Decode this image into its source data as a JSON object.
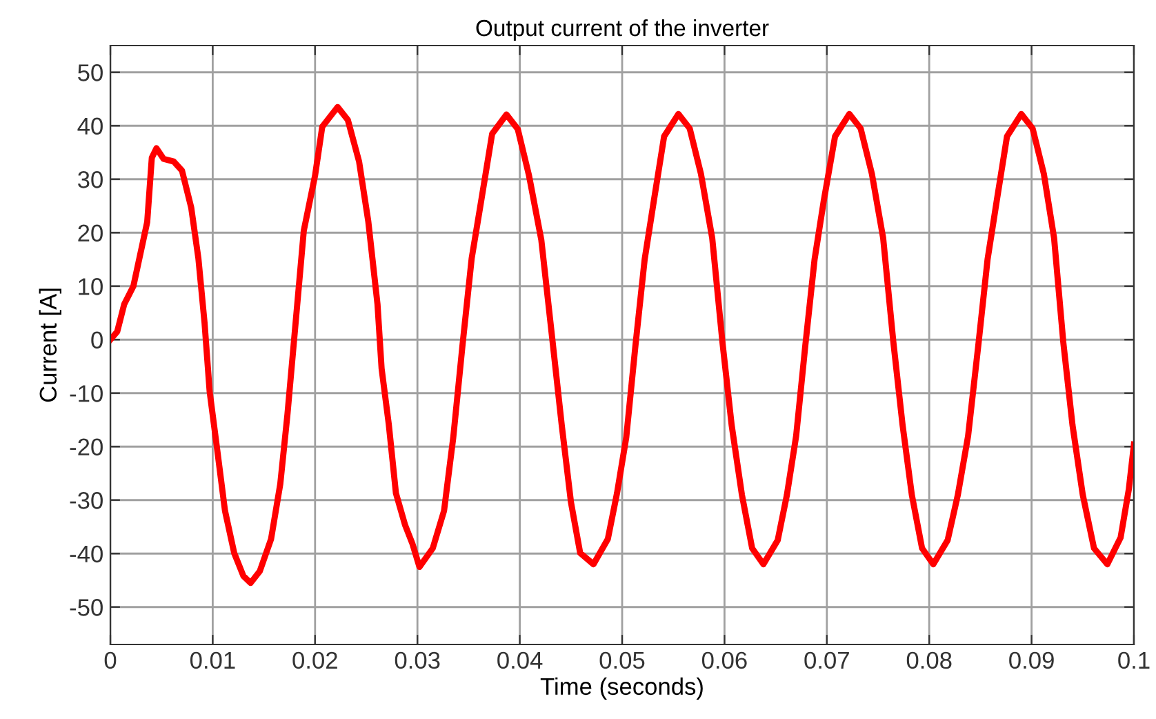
{
  "chart_data": {
    "type": "line",
    "title": "Output current of the inverter",
    "xlabel": "Time (seconds)",
    "ylabel": "Current [A]",
    "xlim": [
      0,
      0.1
    ],
    "xticks": [
      0,
      0.01,
      0.02,
      0.03,
      0.04,
      0.05,
      0.06,
      0.07,
      0.08,
      0.09,
      {
        "value": 0.1,
        "label": "0.1"
      }
    ],
    "ylim": [
      -57,
      55
    ],
    "yticks": [
      -50,
      -40,
      -30,
      -20,
      -10,
      0,
      10,
      20,
      30,
      40,
      50
    ],
    "grid": true,
    "marker": "none",
    "line_style": "solid",
    "series": [
      {
        "color": "#ff0000",
        "x": [
          0,
          0.00067,
          0.00135,
          0.00225,
          0.0036,
          0.00405,
          0.0045,
          0.0052,
          0.0062,
          0.007,
          0.0079,
          0.0086,
          0.0092,
          0.0097,
          0.0104,
          0.0112,
          0.0121,
          0.013,
          0.0137,
          0.0146,
          0.0157,
          0.0166,
          0.0173,
          0.0179,
          0.0189,
          0.02,
          0.0207,
          0.0222,
          0.0232,
          0.0243,
          0.0252,
          0.0261,
          0.0265,
          0.0272,
          0.0279,
          0.0288,
          0.0295,
          0.0302,
          0.0315,
          0.0326,
          0.0335,
          0.0344,
          0.0353,
          0.0362,
          0.0373,
          0.0387,
          0.0398,
          0.0409,
          0.0421,
          0.0432,
          0.0441,
          0.045,
          0.0459,
          0.0472,
          0.0486,
          0.0495,
          0.0504,
          0.0513,
          0.0522,
          0.0531,
          0.0541,
          0.0555,
          0.0566,
          0.0577,
          0.0588,
          0.0598,
          0.0607,
          0.0617,
          0.0627,
          0.0638,
          0.0652,
          0.0661,
          0.067,
          0.0679,
          0.0688,
          0.0697,
          0.0708,
          0.0722,
          0.0733,
          0.0744,
          0.0755,
          0.0765,
          0.0774,
          0.0783,
          0.0793,
          0.0804,
          0.0818,
          0.0828,
          0.0838,
          0.0848,
          0.0857,
          0.0866,
          0.0876,
          0.089,
          0.0901,
          0.0912,
          0.0922,
          0.0931,
          0.094,
          0.095,
          0.0961,
          0.0974,
          0.0987,
          0.0995,
          0.1
        ],
        "values": [
          0,
          1.5,
          6.6,
          10,
          22,
          34,
          35.8,
          33.8,
          33.3,
          31.6,
          24.7,
          15.2,
          3.2,
          -9.7,
          -20,
          -32,
          -39.9,
          -44.2,
          -45.5,
          -43.3,
          -37.3,
          -27,
          -14,
          -1.1,
          20.4,
          30.7,
          39.8,
          43.5,
          41.1,
          33.3,
          22.1,
          6.6,
          -5.4,
          -15.8,
          -28.7,
          -34.7,
          -38.1,
          -42.5,
          -39,
          -32,
          -18.3,
          -1.1,
          15.2,
          25.6,
          38.5,
          42.1,
          39.4,
          30.7,
          18.7,
          -0.3,
          -16,
          -30.4,
          -39.9,
          -42,
          -37.3,
          -28.7,
          -18.3,
          -1.1,
          15,
          26,
          38,
          42.2,
          39.5,
          31,
          19,
          -0.5,
          -16,
          -29,
          -39,
          -42,
          -37.5,
          -29,
          -18,
          -1,
          15,
          26,
          38,
          42.2,
          39.5,
          31,
          19,
          -0.5,
          -16,
          -29,
          -39,
          -42,
          -37.5,
          -29,
          -18,
          -1,
          15,
          26,
          38,
          42.2,
          39.5,
          31,
          19,
          -0.5,
          -16,
          -29,
          -39,
          -42,
          -37,
          -28,
          -19.6
        ]
      }
    ]
  }
}
